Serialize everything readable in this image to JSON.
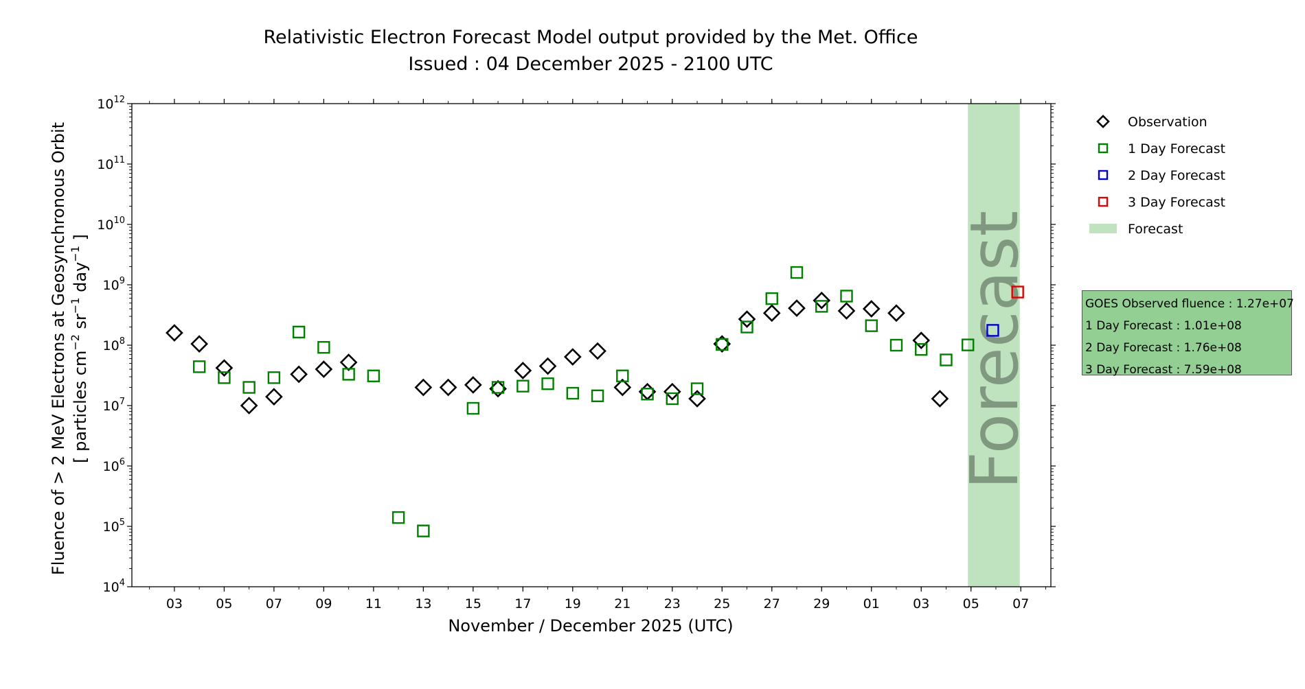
{
  "chart_data": {
    "type": "scatter",
    "title": "Relativistic Electron Forecast Model output provided by the Met. Office",
    "subtitle": "Issued : 04 December 2025 - 2100 UTC",
    "xlabel": "November / December 2025 (UTC)",
    "ylabel_line1": "Fluence of > 2 MeV Electrons at Geosynchronous Orbit",
    "ylabel_line2_parts": [
      "[ particles cm",
      "−2",
      " sr",
      "−1",
      " day",
      "−1",
      " ]"
    ],
    "y_scale": "log",
    "ylim": [
      10000,
      1000000000000
    ],
    "y_tick_exponents": [
      4,
      5,
      6,
      7,
      8,
      9,
      10,
      11,
      12
    ],
    "y_tick_base": "10",
    "xlim": [
      "2025-11-01T07:00",
      "2025-12-08T05:00"
    ],
    "x_ticks": [
      {
        "date": "2025-11-03",
        "label": "03"
      },
      {
        "date": "2025-11-05",
        "label": "05"
      },
      {
        "date": "2025-11-07",
        "label": "07"
      },
      {
        "date": "2025-11-09",
        "label": "09"
      },
      {
        "date": "2025-11-11",
        "label": "11"
      },
      {
        "date": "2025-11-13",
        "label": "13"
      },
      {
        "date": "2025-11-15",
        "label": "15"
      },
      {
        "date": "2025-11-17",
        "label": "17"
      },
      {
        "date": "2025-11-19",
        "label": "19"
      },
      {
        "date": "2025-11-21",
        "label": "21"
      },
      {
        "date": "2025-11-23",
        "label": "23"
      },
      {
        "date": "2025-11-25",
        "label": "25"
      },
      {
        "date": "2025-11-27",
        "label": "27"
      },
      {
        "date": "2025-11-29",
        "label": "29"
      },
      {
        "date": "2025-12-01",
        "label": "01"
      },
      {
        "date": "2025-12-03",
        "label": "03"
      },
      {
        "date": "2025-12-05",
        "label": "05"
      },
      {
        "date": "2025-12-07",
        "label": "07"
      }
    ],
    "forecast_region": {
      "start": "2025-12-04T21:00",
      "end": "2025-12-06T23:00",
      "label": "Forecast",
      "color": "#bfe3bf"
    },
    "legend_position": "outside-right",
    "series": [
      {
        "name": "Observation",
        "marker": "diamond",
        "color": "#000000",
        "points": [
          {
            "x": "2025-11-03",
            "y": 160000000
          },
          {
            "x": "2025-11-04",
            "y": 105000000
          },
          {
            "x": "2025-11-05",
            "y": 42000000
          },
          {
            "x": "2025-11-06",
            "y": 10000000
          },
          {
            "x": "2025-11-07",
            "y": 14000000
          },
          {
            "x": "2025-11-08",
            "y": 33000000
          },
          {
            "x": "2025-11-09",
            "y": 40000000
          },
          {
            "x": "2025-11-10",
            "y": 52000000
          },
          {
            "x": "2025-11-13",
            "y": 20000000
          },
          {
            "x": "2025-11-14",
            "y": 20000000
          },
          {
            "x": "2025-11-15",
            "y": 22000000
          },
          {
            "x": "2025-11-16",
            "y": 19000000
          },
          {
            "x": "2025-11-17",
            "y": 38000000
          },
          {
            "x": "2025-11-18",
            "y": 45000000
          },
          {
            "x": "2025-11-19",
            "y": 64000000
          },
          {
            "x": "2025-11-20",
            "y": 80000000
          },
          {
            "x": "2025-11-21",
            "y": 20000000
          },
          {
            "x": "2025-11-22",
            "y": 17000000
          },
          {
            "x": "2025-11-23",
            "y": 17000000
          },
          {
            "x": "2025-11-24",
            "y": 13000000
          },
          {
            "x": "2025-11-25",
            "y": 105000000
          },
          {
            "x": "2025-11-26",
            "y": 270000000
          },
          {
            "x": "2025-11-27",
            "y": 340000000
          },
          {
            "x": "2025-11-28",
            "y": 410000000
          },
          {
            "x": "2025-11-29",
            "y": 550000000
          },
          {
            "x": "2025-11-30",
            "y": 370000000
          },
          {
            "x": "2025-12-01",
            "y": 400000000
          },
          {
            "x": "2025-12-02",
            "y": 340000000
          },
          {
            "x": "2025-12-03",
            "y": 120000000
          },
          {
            "x": "2025-12-03T18:00",
            "y": 13000000
          }
        ]
      },
      {
        "name": "1 Day Forecast",
        "marker": "square",
        "color": "#008000",
        "points": [
          {
            "x": "2025-11-04",
            "y": 44000000
          },
          {
            "x": "2025-11-05",
            "y": 29000000
          },
          {
            "x": "2025-11-06",
            "y": 20000000
          },
          {
            "x": "2025-11-07",
            "y": 29000000
          },
          {
            "x": "2025-11-08",
            "y": 165000000
          },
          {
            "x": "2025-11-09",
            "y": 92000000
          },
          {
            "x": "2025-11-10",
            "y": 33000000
          },
          {
            "x": "2025-11-11",
            "y": 31000000
          },
          {
            "x": "2025-11-12",
            "y": 140000
          },
          {
            "x": "2025-11-13",
            "y": 84000
          },
          {
            "x": "2025-11-15",
            "y": 9000000
          },
          {
            "x": "2025-11-16",
            "y": 20000000
          },
          {
            "x": "2025-11-17",
            "y": 21000000
          },
          {
            "x": "2025-11-18",
            "y": 23000000
          },
          {
            "x": "2025-11-19",
            "y": 16000000
          },
          {
            "x": "2025-11-20",
            "y": 14500000
          },
          {
            "x": "2025-11-21",
            "y": 31000000
          },
          {
            "x": "2025-11-22",
            "y": 15500000
          },
          {
            "x": "2025-11-23",
            "y": 13000000
          },
          {
            "x": "2025-11-24",
            "y": 19000000
          },
          {
            "x": "2025-11-25",
            "y": 103000000
          },
          {
            "x": "2025-11-26",
            "y": 200000000
          },
          {
            "x": "2025-11-27",
            "y": 590000000
          },
          {
            "x": "2025-11-28",
            "y": 1600000000
          },
          {
            "x": "2025-11-29",
            "y": 440000000
          },
          {
            "x": "2025-11-30",
            "y": 650000000
          },
          {
            "x": "2025-12-01",
            "y": 210000000
          },
          {
            "x": "2025-12-02",
            "y": 100000000
          },
          {
            "x": "2025-12-03",
            "y": 85000000
          },
          {
            "x": "2025-12-04",
            "y": 57000000
          },
          {
            "x": "2025-12-04T21:00",
            "y": 101000000
          }
        ]
      },
      {
        "name": "2 Day Forecast",
        "marker": "square",
        "color": "#0000cc",
        "points": [
          {
            "x": "2025-12-05T21:00",
            "y": 176000000
          }
        ]
      },
      {
        "name": "3 Day Forecast",
        "marker": "square",
        "color": "#e00000",
        "points": [
          {
            "x": "2025-12-06T21:00",
            "y": 759000000
          }
        ]
      }
    ],
    "legend": [
      {
        "label": "Observation",
        "marker": "diamond",
        "color": "#000000"
      },
      {
        "label": "1 Day Forecast",
        "marker": "square",
        "color": "#008000"
      },
      {
        "label": "2 Day Forecast",
        "marker": "square",
        "color": "#0000cc"
      },
      {
        "label": "3 Day Forecast",
        "marker": "square",
        "color": "#e00000"
      },
      {
        "label": "Forecast",
        "marker": "patch",
        "color": "#bfe3bf"
      }
    ],
    "info_box": {
      "color": "#93cf93",
      "lines": [
        "GOES Observed fluence : 1.27e+07",
        "1 Day Forecast : 1.01e+08",
        "2 Day Forecast : 1.76e+08",
        "3 Day Forecast : 7.59e+08"
      ]
    }
  }
}
